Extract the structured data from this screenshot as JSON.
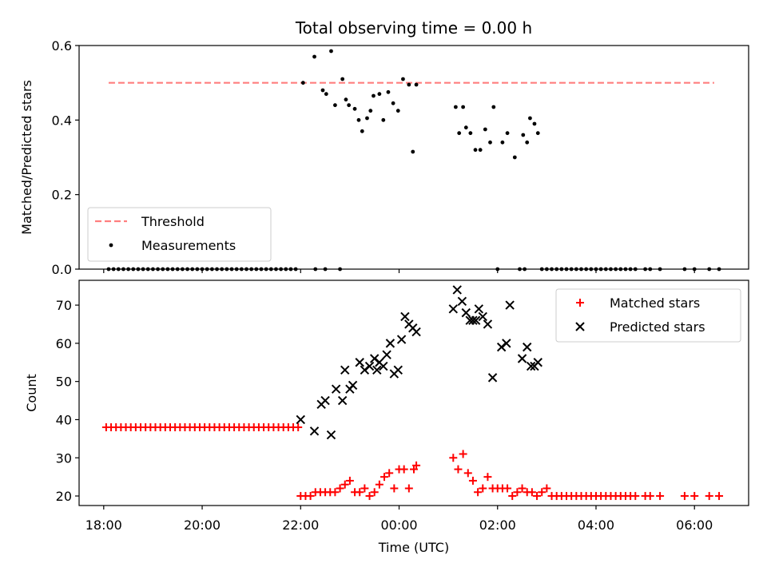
{
  "chart_data": {
    "title": "Total observing time = 0.00 h",
    "xlabel": "Time (UTC)",
    "x_unit": "hours since 18:00 UTC",
    "xlim": [
      -0.5,
      13.1
    ],
    "xticks": [
      {
        "value": 0,
        "label": "18:00"
      },
      {
        "value": 2,
        "label": "20:00"
      },
      {
        "value": 4,
        "label": "22:00"
      },
      {
        "value": 6,
        "label": "00:00"
      },
      {
        "value": 8,
        "label": "02:00"
      },
      {
        "value": 10,
        "label": "04:00"
      },
      {
        "value": 12,
        "label": "06:00"
      }
    ],
    "panels": [
      {
        "type": "scatter",
        "ylabel": "Matched/Predicted stars",
        "ylim": [
          0,
          0.6
        ],
        "yticks": [
          {
            "value": 0,
            "label": "0.0"
          },
          {
            "value": 0.2,
            "label": "0.2"
          },
          {
            "value": 0.4,
            "label": "0.4"
          },
          {
            "value": 0.6,
            "label": "0.6"
          }
        ],
        "legend_position": "lower-left",
        "threshold": {
          "name": "Threshold",
          "y": 0.5,
          "x_range": [
            0.1,
            12.4
          ],
          "color": "#ff7f7f"
        },
        "series": [
          {
            "name": "Measurements",
            "color": "#000000",
            "x": [
              0.1,
              0.2,
              0.3,
              0.4,
              0.5,
              0.6,
              0.7,
              0.8,
              0.9,
              1.0,
              1.1,
              1.2,
              1.3,
              1.4,
              1.5,
              1.6,
              1.7,
              1.8,
              1.9,
              2.0,
              2.1,
              2.2,
              2.3,
              2.4,
              2.5,
              2.6,
              2.7,
              2.8,
              2.9,
              3.0,
              3.1,
              3.2,
              3.3,
              3.4,
              3.5,
              3.6,
              3.7,
              3.8,
              3.9,
              4.3,
              4.5,
              4.8,
              4.05,
              4.28,
              4.45,
              4.52,
              4.62,
              4.7,
              4.85,
              4.92,
              4.98,
              5.1,
              5.18,
              5.25,
              5.35,
              5.42,
              5.48,
              5.6,
              5.68,
              5.78,
              5.88,
              5.98,
              6.08,
              6.2,
              6.28,
              6.35,
              7.15,
              7.22,
              7.3,
              7.36,
              7.45,
              7.55,
              7.65,
              7.75,
              7.85,
              7.92,
              8.1,
              8.2,
              8.35,
              8.52,
              8.6,
              8.66,
              8.75,
              8.82,
              8.0,
              8.45,
              8.55,
              8.9,
              9.0,
              9.1,
              9.2,
              9.3,
              9.4,
              9.5,
              9.6,
              9.7,
              9.8,
              9.9,
              10.0,
              10.1,
              10.2,
              10.3,
              10.4,
              10.5,
              10.6,
              10.7,
              10.8,
              11.0,
              11.1,
              11.3,
              11.8,
              12.0,
              12.3,
              12.5
            ],
            "y": [
              0,
              0,
              0,
              0,
              0,
              0,
              0,
              0,
              0,
              0,
              0,
              0,
              0,
              0,
              0,
              0,
              0,
              0,
              0,
              0,
              0,
              0,
              0,
              0,
              0,
              0,
              0,
              0,
              0,
              0,
              0,
              0,
              0,
              0,
              0,
              0,
              0,
              0,
              0,
              0,
              0,
              0,
              0.5,
              0.57,
              0.48,
              0.47,
              0.585,
              0.44,
              0.51,
              0.455,
              0.44,
              0.43,
              0.4,
              0.37,
              0.405,
              0.425,
              0.465,
              0.47,
              0.4,
              0.475,
              0.445,
              0.425,
              0.51,
              0.495,
              0.315,
              0.495,
              0.435,
              0.365,
              0.435,
              0.38,
              0.365,
              0.32,
              0.32,
              0.375,
              0.34,
              0.435,
              0.34,
              0.365,
              0.3,
              0.36,
              0.34,
              0.405,
              0.39,
              0.365,
              0,
              0,
              0,
              0,
              0,
              0,
              0,
              0,
              0,
              0,
              0,
              0,
              0,
              0,
              0,
              0,
              0,
              0,
              0,
              0,
              0,
              0,
              0,
              0,
              0,
              0,
              0,
              0,
              0,
              0
            ]
          }
        ]
      },
      {
        "type": "scatter",
        "ylabel": "Count",
        "ylim": [
          17.5,
          76.5
        ],
        "yticks": [
          {
            "value": 20,
            "label": "20"
          },
          {
            "value": 30,
            "label": "30"
          },
          {
            "value": 40,
            "label": "40"
          },
          {
            "value": 50,
            "label": "50"
          },
          {
            "value": 60,
            "label": "60"
          },
          {
            "value": 70,
            "label": "70"
          }
        ],
        "legend_position": "upper-right",
        "series": [
          {
            "name": "Matched stars",
            "marker": "plus",
            "color": "#ff0000",
            "x": [
              0.05,
              0.15,
              0.25,
              0.35,
              0.45,
              0.55,
              0.65,
              0.75,
              0.85,
              0.95,
              1.05,
              1.15,
              1.25,
              1.35,
              1.45,
              1.55,
              1.65,
              1.75,
              1.85,
              1.95,
              2.05,
              2.15,
              2.25,
              2.35,
              2.45,
              2.55,
              2.65,
              2.75,
              2.85,
              2.95,
              3.05,
              3.15,
              3.25,
              3.35,
              3.45,
              3.55,
              3.65,
              3.75,
              3.85,
              3.95,
              4.0,
              4.1,
              4.2,
              4.3,
              4.4,
              4.5,
              4.6,
              4.7,
              4.8,
              4.9,
              5.0,
              5.1,
              5.2,
              5.3,
              5.4,
              5.5,
              5.6,
              5.7,
              5.8,
              5.9,
              6.0,
              6.1,
              6.2,
              6.3,
              6.35,
              7.1,
              7.2,
              7.3,
              7.4,
              7.5,
              7.6,
              7.7,
              7.8,
              7.9,
              8.0,
              8.1,
              8.2,
              8.3,
              8.4,
              8.5,
              8.6,
              8.7,
              8.8,
              8.9,
              9.0,
              9.1,
              9.2,
              9.3,
              9.4,
              9.5,
              9.6,
              9.7,
              9.8,
              9.9,
              10.0,
              10.1,
              10.2,
              10.3,
              10.4,
              10.5,
              10.6,
              10.7,
              10.8,
              11.0,
              11.1,
              11.3,
              11.8,
              12.0,
              12.3,
              12.5
            ],
            "y": [
              38,
              38,
              38,
              38,
              38,
              38,
              38,
              38,
              38,
              38,
              38,
              38,
              38,
              38,
              38,
              38,
              38,
              38,
              38,
              38,
              38,
              38,
              38,
              38,
              38,
              38,
              38,
              38,
              38,
              38,
              38,
              38,
              38,
              38,
              38,
              38,
              38,
              38,
              38,
              38,
              20,
              20,
              20,
              21,
              21,
              21,
              21,
              21,
              22,
              23,
              24,
              21,
              21,
              22,
              20,
              21,
              23,
              25,
              26,
              22,
              27,
              27,
              22,
              27,
              28,
              30,
              27,
              31,
              26,
              24,
              21,
              22,
              25,
              22,
              22,
              22,
              22,
              20,
              21,
              22,
              21,
              21,
              20,
              21,
              22,
              20,
              20,
              20,
              20,
              20,
              20,
              20,
              20,
              20,
              20,
              20,
              20,
              20,
              20,
              20,
              20,
              20,
              20,
              20,
              20,
              20,
              20,
              20,
              20,
              20
            ]
          },
          {
            "name": "Predicted stars",
            "marker": "x",
            "color": "#000000",
            "x": [
              4.0,
              4.28,
              4.42,
              4.5,
              4.62,
              4.72,
              4.85,
              4.9,
              5.0,
              5.06,
              5.2,
              5.3,
              5.4,
              5.5,
              5.55,
              5.6,
              5.68,
              5.75,
              5.82,
              5.9,
              5.98,
              6.05,
              6.12,
              6.2,
              6.28,
              6.35,
              7.1,
              7.18,
              7.28,
              7.36,
              7.44,
              7.5,
              7.56,
              7.62,
              7.7,
              7.8,
              7.9,
              8.08,
              8.18,
              8.25,
              8.5,
              8.6,
              8.68,
              8.75,
              8.82
            ],
            "y": [
              40,
              37,
              44,
              45,
              36,
              48,
              45,
              53,
              48,
              49,
              55,
              53,
              54,
              56,
              53,
              55,
              54,
              57,
              60,
              52,
              53,
              61,
              67,
              65,
              64,
              63,
              69,
              74,
              71,
              68,
              66,
              66,
              66,
              69,
              67,
              65,
              51,
              59,
              60,
              70,
              56,
              59,
              54,
              54,
              55
            ]
          }
        ]
      }
    ]
  }
}
